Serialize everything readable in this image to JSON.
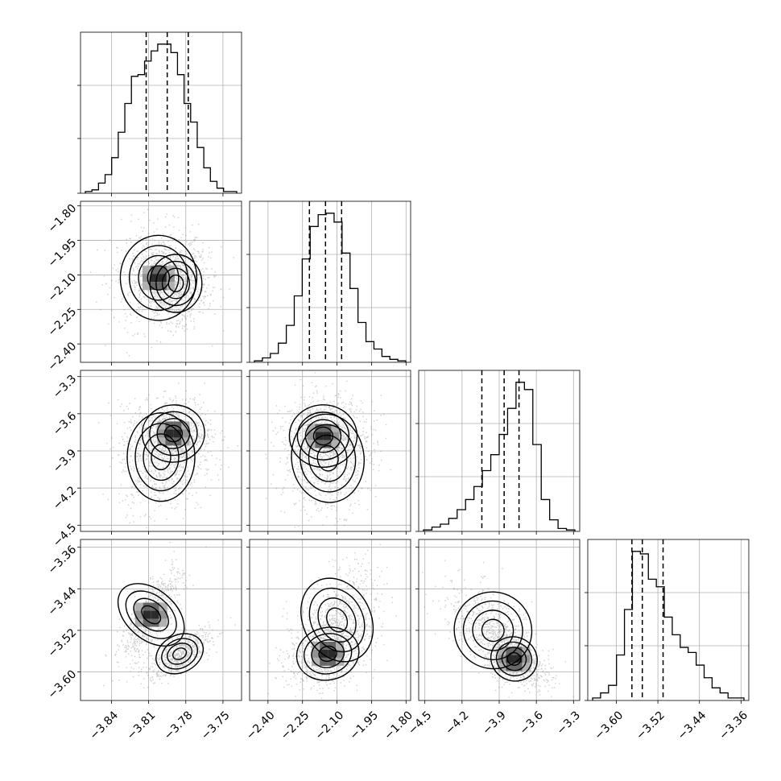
{
  "chart_data": {
    "type": "corner",
    "n_params": 4,
    "params": [
      {
        "range": [
          -3.865,
          -3.735
        ],
        "ticks": [
          -3.84,
          -3.81,
          -3.78,
          -3.75
        ],
        "ticklabels": [
          "−3.84",
          "−3.81",
          "−3.78",
          "−3.75"
        ],
        "quantiles": [
          -3.812,
          -3.795,
          -3.778
        ],
        "hist_counts": [
          1,
          2,
          6,
          11,
          21,
          36,
          53,
          69,
          70,
          78,
          84,
          88,
          88,
          83,
          70,
          53,
          42,
          27,
          15,
          7,
          3,
          1,
          1
        ]
      },
      {
        "range": [
          -2.48,
          -1.78
        ],
        "ticks": [
          -2.4,
          -2.25,
          -2.1,
          -1.95,
          -1.8
        ],
        "ticklabels": [
          "−2.40",
          "−2.25",
          "−2.10",
          "−1.95",
          "−1.80"
        ],
        "quantiles": [
          -2.22,
          -2.15,
          -2.08
        ],
        "hist_counts": [
          1,
          3,
          6,
          13,
          25,
          45,
          70,
          92,
          100,
          101,
          95,
          74,
          50,
          27,
          14,
          9,
          4,
          2,
          1
        ]
      },
      {
        "range": [
          -4.55,
          -3.25
        ],
        "ticks": [
          -4.5,
          -4.2,
          -3.9,
          -3.6,
          -3.3
        ],
        "ticklabels": [
          "−4.5",
          "−4.2",
          "−3.9",
          "−3.6",
          "−3.3"
        ],
        "quantiles": [
          -4.04,
          -3.86,
          -3.74
        ],
        "hist_counts": [
          1,
          3,
          5,
          9,
          15,
          22,
          31,
          42,
          53,
          67,
          85,
          103,
          98,
          60,
          22,
          8,
          2,
          1
        ]
      },
      {
        "range": [
          -3.655,
          -3.345
        ],
        "ticks": [
          -3.6,
          -3.52,
          -3.44,
          -3.36
        ],
        "ticklabels": [
          "−3.60",
          "−3.52",
          "−3.44",
          "−3.36"
        ],
        "quantiles": [
          -3.57,
          -3.55,
          -3.51
        ],
        "hist_counts": [
          1,
          3,
          6,
          18,
          36,
          59,
          58,
          48,
          45,
          33,
          26,
          21,
          19,
          14,
          9,
          5,
          3,
          1,
          1
        ]
      }
    ],
    "hist2d": [
      {
        "row": 1,
        "col": 0,
        "rho": 0.0,
        "modes": [
          {
            "mx": -3.802,
            "my": -2.113,
            "sx": 0.0147,
            "sy": 0.088,
            "rho": 0.0
          },
          {
            "mx": -3.788,
            "my": -2.137,
            "sx": 0.01,
            "sy": 0.06,
            "rho": 0.0
          }
        ]
      },
      {
        "row": 2,
        "col": 0,
        "modes": [
          {
            "mx": -3.79,
            "my": -3.76,
            "sx": 0.012,
            "sy": 0.11,
            "rho": 0.1
          },
          {
            "mx": -3.8,
            "my": -3.95,
            "sx": 0.013,
            "sy": 0.17,
            "rho": 0.0
          }
        ]
      },
      {
        "row": 2,
        "col": 1,
        "modes": [
          {
            "mx": -2.16,
            "my": -3.78,
            "sx": 0.07,
            "sy": 0.12,
            "rho": 0.0
          },
          {
            "mx": -2.14,
            "my": -3.96,
            "sx": 0.075,
            "sy": 0.17,
            "rho": 0.1
          }
        ]
      },
      {
        "row": 3,
        "col": 0,
        "modes": [
          {
            "mx": -3.808,
            "my": -3.49,
            "sx": 0.0095,
            "sy": 0.035,
            "rho": 0.75
          },
          {
            "mx": -3.785,
            "my": -3.565,
            "sx": 0.0095,
            "sy": 0.017,
            "rho": 0.7
          }
        ]
      },
      {
        "row": 3,
        "col": 1,
        "modes": [
          {
            "mx": -2.14,
            "my": -3.565,
            "sx": 0.065,
            "sy": 0.024,
            "rho": 0.3
          },
          {
            "mx": -2.1,
            "my": -3.5,
            "sx": 0.07,
            "sy": 0.04,
            "rho": 0.4
          }
        ]
      },
      {
        "row": 3,
        "col": 2,
        "modes": [
          {
            "mx": -3.78,
            "my": -3.575,
            "sx": 0.09,
            "sy": 0.02,
            "rho": -0.5
          },
          {
            "mx": -3.95,
            "my": -3.52,
            "sx": 0.15,
            "sy": 0.035,
            "rho": -0.6
          }
        ]
      }
    ],
    "contour_levels": [
      "0.5 sigma",
      "1 sigma",
      "1.5 sigma",
      "2 sigma"
    ],
    "grid": true,
    "colors": {
      "points": "#6f6f6f",
      "density": "#000000",
      "line": "#000000",
      "grid": "#b0b0b0"
    }
  }
}
